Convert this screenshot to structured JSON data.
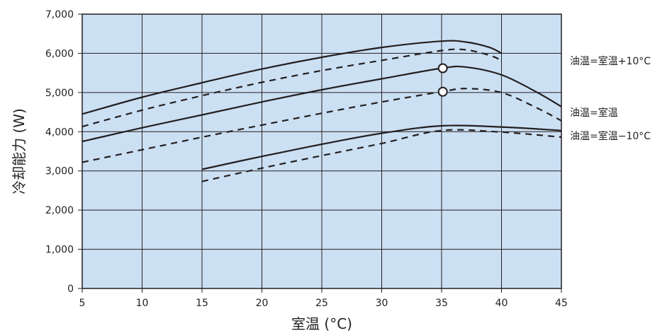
{
  "chart_data": {
    "type": "line",
    "xlabel": "室温 (°C)",
    "ylabel": "冷却能力 (W)",
    "xlim": [
      5,
      45
    ],
    "ylim": [
      0,
      7000
    ],
    "x_ticks": [
      "5",
      "10",
      "15",
      "20",
      "25",
      "30",
      "35",
      "40",
      "45"
    ],
    "y_ticks": [
      "0",
      "1,000",
      "2,000",
      "3,000",
      "4,000",
      "5,000",
      "6,000",
      "7,000"
    ],
    "grid": true,
    "plot_background": "#cce0f4",
    "line_color": "#231f20",
    "series_labels": [
      "油温=室温+10°C",
      "油温=室温",
      "油温=室温−10°C"
    ],
    "series": [
      {
        "group": 0,
        "style": "solid",
        "points": [
          [
            5,
            4450
          ],
          [
            10,
            4880
          ],
          [
            15,
            5250
          ],
          [
            20,
            5600
          ],
          [
            25,
            5900
          ],
          [
            30,
            6150
          ],
          [
            35,
            6310
          ],
          [
            37,
            6290
          ],
          [
            39,
            6150
          ],
          [
            40,
            6000
          ]
        ]
      },
      {
        "group": 0,
        "style": "dashed",
        "points": [
          [
            5,
            4130
          ],
          [
            10,
            4550
          ],
          [
            15,
            4920
          ],
          [
            20,
            5260
          ],
          [
            25,
            5560
          ],
          [
            30,
            5820
          ],
          [
            35,
            6070
          ],
          [
            37,
            6090
          ],
          [
            39,
            5950
          ],
          [
            40,
            5820
          ]
        ]
      },
      {
        "group": 1,
        "style": "solid",
        "points": [
          [
            5,
            3750
          ],
          [
            10,
            4100
          ],
          [
            15,
            4430
          ],
          [
            20,
            4760
          ],
          [
            25,
            5070
          ],
          [
            30,
            5350
          ],
          [
            35,
            5620
          ],
          [
            37,
            5650
          ],
          [
            40,
            5450
          ],
          [
            43,
            5000
          ],
          [
            45,
            4640
          ]
        ]
      },
      {
        "group": 1,
        "style": "dashed",
        "points": [
          [
            5,
            3220
          ],
          [
            10,
            3540
          ],
          [
            15,
            3860
          ],
          [
            20,
            4170
          ],
          [
            25,
            4470
          ],
          [
            30,
            4760
          ],
          [
            35,
            5020
          ],
          [
            37,
            5100
          ],
          [
            40,
            5000
          ],
          [
            43,
            4600
          ],
          [
            45,
            4280
          ]
        ]
      },
      {
        "group": 2,
        "style": "solid",
        "points": [
          [
            15,
            3040
          ],
          [
            20,
            3370
          ],
          [
            25,
            3680
          ],
          [
            30,
            3960
          ],
          [
            35,
            4150
          ],
          [
            40,
            4120
          ],
          [
            45,
            4030
          ]
        ]
      },
      {
        "group": 2,
        "style": "dashed",
        "points": [
          [
            15,
            2730
          ],
          [
            20,
            3070
          ],
          [
            25,
            3390
          ],
          [
            30,
            3700
          ],
          [
            35,
            4030
          ],
          [
            40,
            3990
          ],
          [
            45,
            3860
          ]
        ]
      }
    ],
    "markers": [
      [
        35.1,
        5620
      ],
      [
        35.1,
        5020
      ]
    ]
  }
}
